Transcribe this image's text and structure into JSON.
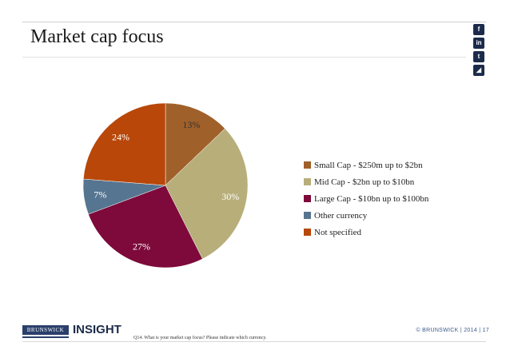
{
  "header": {
    "title": "Market cap focus"
  },
  "social": [
    {
      "icon": "facebook-icon",
      "glyph": "f"
    },
    {
      "icon": "linkedin-icon",
      "glyph": "in"
    },
    {
      "icon": "twitter-icon",
      "glyph": "t"
    },
    {
      "icon": "rss-icon",
      "glyph": "◢"
    }
  ],
  "chart_data": {
    "type": "pie",
    "title": "Market cap focus",
    "categories": [
      "Small Cap - $250m up to $2bn",
      "Mid Cap - $2bn up to $10bn",
      "Large Cap - $10bn up to $100bn",
      "Other currency",
      "Not specified"
    ],
    "values": [
      13,
      30,
      27,
      7,
      24
    ],
    "labels": [
      "13%",
      "30%",
      "27%",
      "7%",
      "24%"
    ],
    "colors": [
      "#a0602a",
      "#b7ae7a",
      "#7d0a3a",
      "#567590",
      "#b84709"
    ],
    "label_colors": [
      "#333333",
      "#ffffff",
      "#ffffff",
      "#ffffff",
      "#ffffff"
    ],
    "legend_position": "right"
  },
  "footer": {
    "brand": "BRUNSWICK",
    "product": "INSIGHT",
    "footnote": "Q14. What is your market cap focus? Please indicate which currency.",
    "copyright": "© BRUNSWICK | 2014 | 17"
  }
}
